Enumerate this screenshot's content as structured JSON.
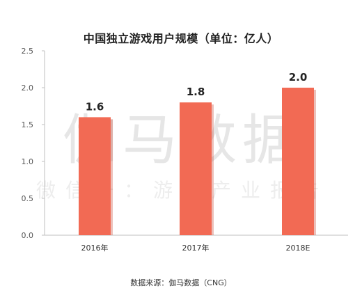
{
  "chart_data": {
    "type": "bar",
    "title": "中国独立游戏用户规模（单位：亿人）",
    "categories": [
      "2016年",
      "2017年",
      "2018E"
    ],
    "values": [
      1.6,
      1.8,
      2.0
    ],
    "data_labels": [
      "1.6",
      "1.8",
      "2.0"
    ],
    "ylim": [
      0,
      2.5
    ],
    "yticks": [
      "0.0",
      "0.5",
      "1.0",
      "1.5",
      "2.0",
      "2.5"
    ],
    "xlabel": "",
    "ylabel": "",
    "grid": false,
    "legend": "none",
    "bar_color": "#f26a54",
    "bar_shadow_color": "#c94b38",
    "source": "数据来源：伽马数据（CNG）"
  },
  "watermark": {
    "main": "伽马数据",
    "sub": "微信号：游戏产业报告"
  }
}
